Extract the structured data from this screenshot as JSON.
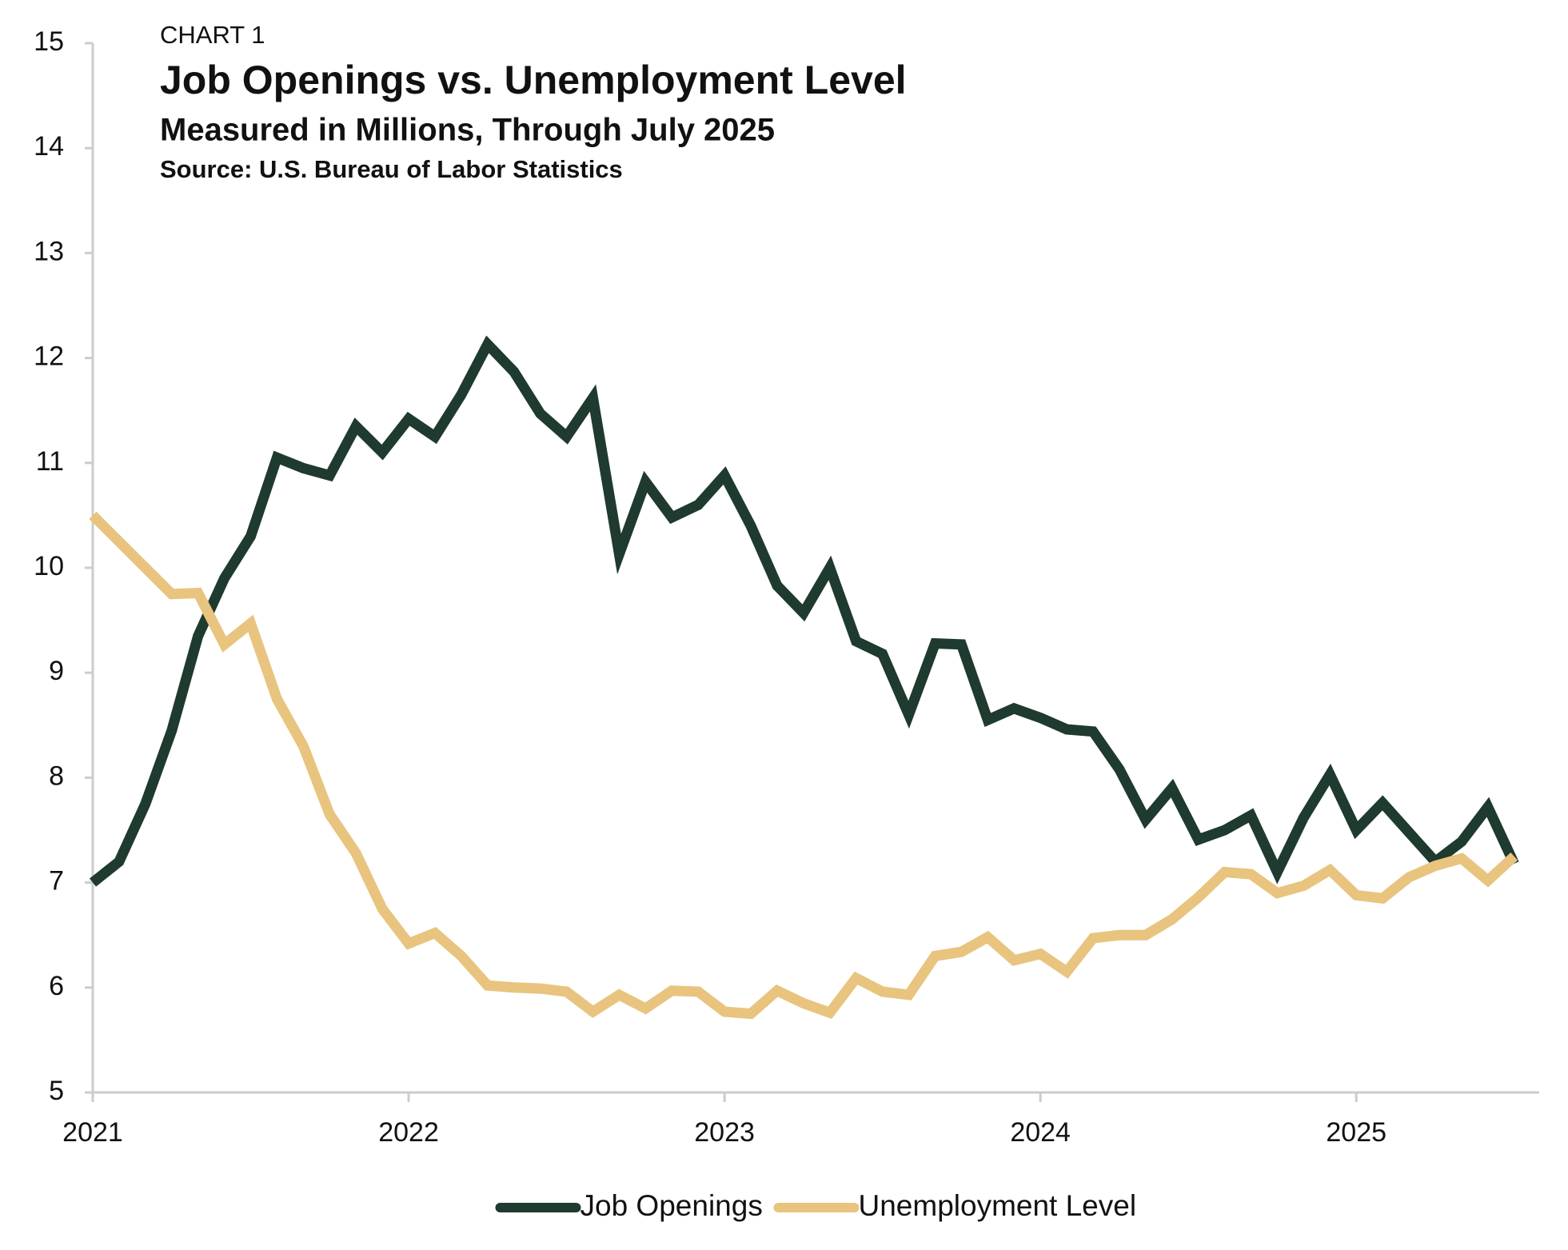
{
  "chart_data": {
    "type": "line",
    "label": "CHART 1",
    "title": "Job Openings vs. Unemployment Level",
    "subtitle": "Measured in Millions, Through July 2025",
    "source": "Source: U.S. Bureau of Labor Statistics",
    "categories": [
      "2021",
      null,
      null,
      null,
      null,
      null,
      null,
      null,
      null,
      null,
      null,
      null,
      "2022",
      null,
      null,
      null,
      null,
      null,
      null,
      null,
      null,
      null,
      null,
      null,
      "2023",
      null,
      null,
      null,
      null,
      null,
      null,
      null,
      null,
      null,
      null,
      null,
      "2024",
      null,
      null,
      null,
      null,
      null,
      null,
      null,
      null,
      null,
      null,
      null,
      "2025",
      null,
      null,
      null,
      null,
      null,
      null
    ],
    "series": [
      {
        "name": "Job Openings",
        "color": "#1f3a2e",
        "values": [
          7.0,
          7.2,
          7.75,
          8.45,
          9.35,
          9.9,
          10.3,
          11.05,
          10.95,
          10.88,
          11.35,
          11.1,
          11.42,
          11.25,
          11.65,
          12.13,
          11.87,
          11.47,
          11.25,
          11.62,
          10.13,
          10.82,
          10.48,
          10.6,
          10.88,
          10.4,
          9.83,
          9.57,
          10.0,
          9.3,
          9.18,
          8.6,
          9.28,
          9.27,
          8.55,
          8.66,
          8.57,
          8.46,
          8.44,
          8.08,
          7.6,
          7.9,
          7.41,
          7.5,
          7.64,
          7.1,
          7.62,
          8.03,
          7.5,
          7.76,
          7.48,
          7.2,
          7.39,
          7.72,
          7.18
        ]
      },
      {
        "name": "Unemployment Level",
        "color": "#e8c47e",
        "values": [
          10.5,
          10.25,
          10.0,
          9.75,
          9.76,
          9.27,
          9.47,
          8.75,
          8.3,
          7.65,
          7.28,
          6.75,
          6.42,
          6.52,
          6.3,
          6.02,
          6.0,
          5.99,
          5.96,
          5.77,
          5.93,
          5.8,
          5.97,
          5.96,
          5.77,
          5.75,
          5.97,
          5.85,
          5.76,
          6.09,
          5.96,
          5.93,
          6.3,
          6.34,
          6.48,
          6.26,
          6.32,
          6.15,
          6.47,
          6.5,
          6.5,
          6.65,
          6.86,
          7.1,
          7.08,
          6.9,
          6.97,
          7.12,
          6.88,
          6.85,
          7.05,
          7.16,
          7.23,
          7.02,
          7.25
        ]
      }
    ],
    "ylim": [
      5,
      15
    ],
    "yticks": [
      5,
      6,
      7,
      8,
      9,
      10,
      11,
      12,
      13,
      14,
      15
    ],
    "grid": false,
    "legend": "bottom"
  }
}
